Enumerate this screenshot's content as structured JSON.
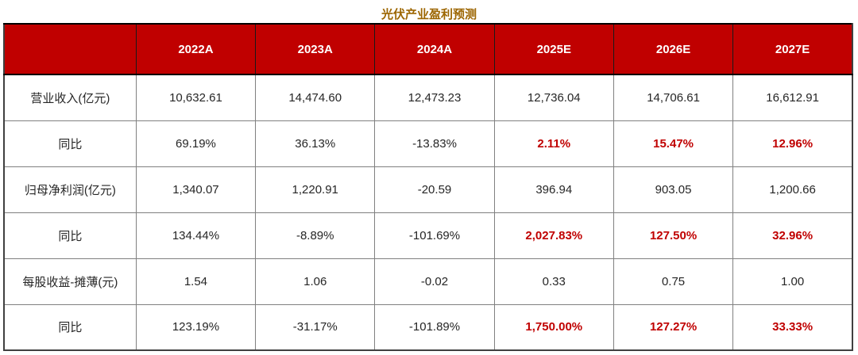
{
  "title": "光伏产业盈利预测",
  "colors": {
    "title_text": "#9C6500",
    "header_bg": "#C00000",
    "header_text": "#FFFFFF",
    "forecast_highlight": "#C00000",
    "body_text": "#262626"
  },
  "chart_data": {
    "type": "table",
    "title": "光伏产业盈利预测",
    "columns": [
      "",
      "2022A",
      "2023A",
      "2024A",
      "2025E",
      "2026E",
      "2027E"
    ],
    "rows": [
      {
        "label": "营业收入(亿元)",
        "values": [
          "10,632.61",
          "14,474.60",
          "12,473.23",
          "12,736.04",
          "14,706.61",
          "16,612.91"
        ],
        "forecast_highlighted": false
      },
      {
        "label": "同比",
        "values": [
          "69.19%",
          "36.13%",
          "-13.83%",
          "2.11%",
          "15.47%",
          "12.96%"
        ],
        "forecast_highlighted": true
      },
      {
        "label": "归母净利润(亿元)",
        "values": [
          "1,340.07",
          "1,220.91",
          "-20.59",
          "396.94",
          "903.05",
          "1,200.66"
        ],
        "forecast_highlighted": false
      },
      {
        "label": "同比",
        "values": [
          "134.44%",
          "-8.89%",
          "-101.69%",
          "2,027.83%",
          "127.50%",
          "32.96%"
        ],
        "forecast_highlighted": true
      },
      {
        "label": "每股收益-摊薄(元)",
        "values": [
          "1.54",
          "1.06",
          "-0.02",
          "0.33",
          "0.75",
          "1.00"
        ],
        "forecast_highlighted": false
      },
      {
        "label": "同比",
        "values": [
          "123.19%",
          "-31.17%",
          "-101.89%",
          "1,750.00%",
          "127.27%",
          "33.33%"
        ],
        "forecast_highlighted": true
      }
    ]
  }
}
